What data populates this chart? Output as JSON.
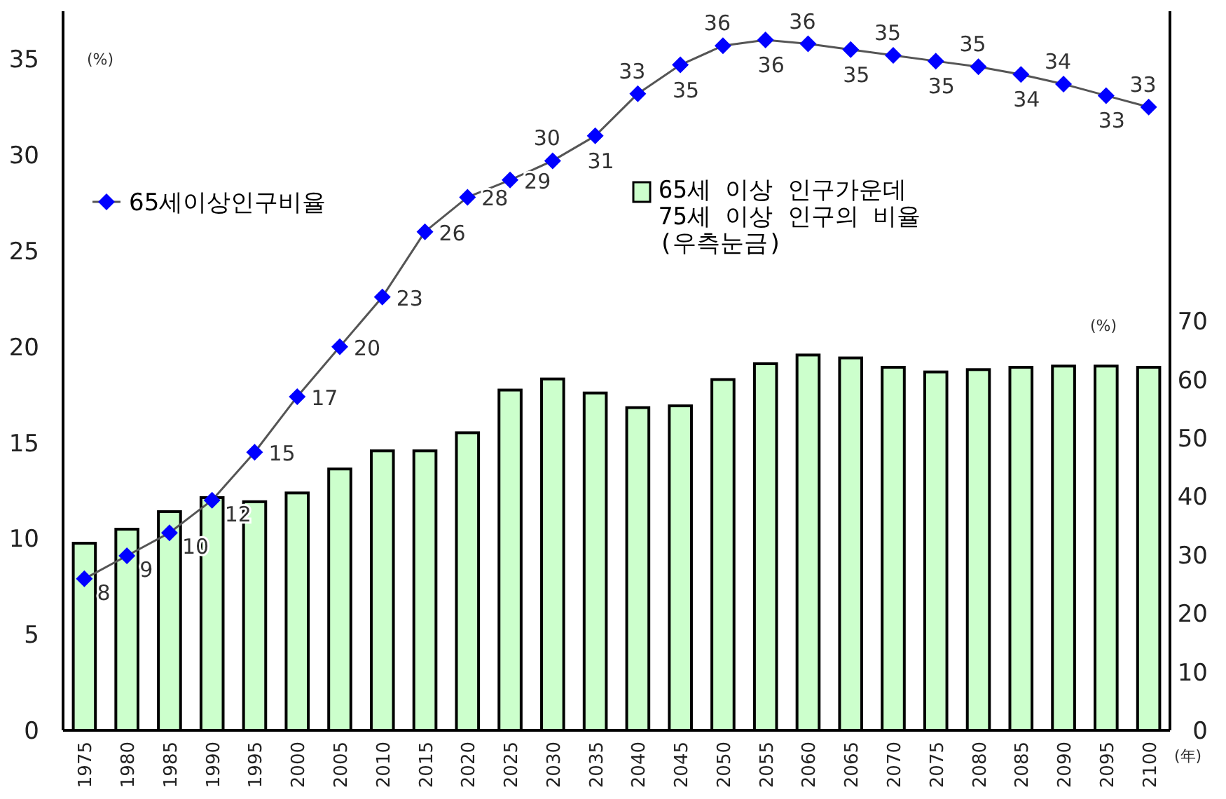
{
  "chart_data": {
    "type": "bar",
    "categories": [
      "1975",
      "1980",
      "1985",
      "1990",
      "1995",
      "2000",
      "2005",
      "2010",
      "2015",
      "2020",
      "2025",
      "2030",
      "2035",
      "2040",
      "2045",
      "2050",
      "2055",
      "2060",
      "2065",
      "2070",
      "2075",
      "2080",
      "2085",
      "2090",
      "2095",
      "2100"
    ],
    "xlabel": "(年)",
    "ylabel": "(%)",
    "y2label": "(%)",
    "ylim": [
      0,
      37.5
    ],
    "yticks": [
      0,
      5,
      10,
      15,
      20,
      25,
      30,
      35
    ],
    "y2lim": [
      0,
      123
    ],
    "y2ticks": [
      0,
      10,
      20,
      30,
      40,
      50,
      60,
      70
    ],
    "legend": "top",
    "series": [
      {
        "name": "65세 이상 인구가운데 75세 이상 인구의 비율 (우측눈금)",
        "axis": "y2",
        "color": "#ccffcc",
        "values": [
          32.0,
          34.4,
          37.4,
          39.8,
          39.1,
          40.6,
          44.7,
          47.8,
          47.8,
          50.9,
          58.2,
          60.1,
          57.7,
          55.2,
          55.5,
          60.0,
          62.7,
          64.2,
          63.7,
          62.1,
          61.3,
          61.7,
          62.1,
          62.3,
          62.3,
          62.1
        ]
      },
      {
        "name": "65세이상인구비율",
        "type": "line",
        "color": "#0000ff",
        "marker": "diamond",
        "values": [
          7.9,
          9.1,
          10.3,
          12.0,
          14.5,
          17.4,
          20.0,
          22.6,
          26.0,
          27.8,
          28.7,
          29.7,
          31.0,
          33.2,
          34.7,
          35.7,
          36.0,
          35.8,
          35.5,
          35.2,
          34.9,
          34.6,
          34.2,
          33.7,
          33.1,
          32.5
        ],
        "value_labels": [
          "8",
          "9",
          "10",
          "12",
          "15",
          "17",
          "20",
          "23",
          "26",
          "28",
          "29",
          "30",
          "31",
          "33",
          "35",
          "36",
          "36",
          "36",
          "35",
          "35",
          "35",
          "35",
          "34",
          "34",
          "33",
          "33"
        ]
      }
    ]
  }
}
